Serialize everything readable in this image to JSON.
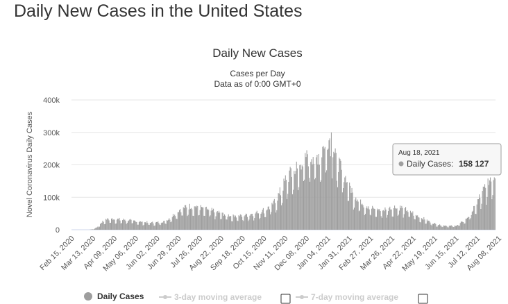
{
  "page": {
    "title": "Daily New Cases in the United States"
  },
  "chart_data": {
    "type": "bar",
    "title": "Daily New Cases",
    "subtitle_lines": [
      "Cases per Day",
      "Data as of 0:00 GMT+0"
    ],
    "xlabel": "",
    "ylabel": "Novel Coronavirus Daily Cases",
    "ylim": [
      0,
      400000
    ],
    "yticks": [
      0,
      100000,
      200000,
      300000,
      400000
    ],
    "ytick_labels": [
      "0",
      "100k",
      "200k",
      "300k",
      "400k"
    ],
    "grid": true,
    "x_start_date": "Feb 15, 2020",
    "x_end_date": "Aug 18, 2021",
    "xtick_labels": [
      "Feb 15, 2020",
      "Mar 13, 2020",
      "Apr 09, 2020",
      "May 06, 2020",
      "Jun 02, 2020",
      "Jun 29, 2020",
      "Jul 26, 2020",
      "Aug 22, 2020",
      "Sep 18, 2020",
      "Oct 15, 2020",
      "Nov 11, 2020",
      "Dec 08, 2020",
      "Jan 04, 2021",
      "Jan 31, 2021",
      "Feb 27, 2021",
      "Mar 26, 2021",
      "Apr 22, 2021",
      "May 19, 2021",
      "Jun 15, 2021",
      "Jul 12, 2021",
      "Aug 08, 2021"
    ],
    "series": [
      {
        "name": "Daily Cases",
        "color": "#9e9e9e",
        "approx_curve_days_since_start": [
          [
            0,
            0
          ],
          [
            22,
            0
          ],
          [
            28,
            2000
          ],
          [
            33,
            9000
          ],
          [
            38,
            22000
          ],
          [
            44,
            30000
          ],
          [
            52,
            31000
          ],
          [
            62,
            29000
          ],
          [
            75,
            27000
          ],
          [
            85,
            23000
          ],
          [
            95,
            21000
          ],
          [
            105,
            20000
          ],
          [
            115,
            23000
          ],
          [
            122,
            30000
          ],
          [
            130,
            45000
          ],
          [
            138,
            60000
          ],
          [
            146,
            66000
          ],
          [
            155,
            67000
          ],
          [
            165,
            62000
          ],
          [
            175,
            56000
          ],
          [
            185,
            50000
          ],
          [
            195,
            42000
          ],
          [
            205,
            40000
          ],
          [
            215,
            40000
          ],
          [
            225,
            44000
          ],
          [
            235,
            50000
          ],
          [
            245,
            57000
          ],
          [
            255,
            75000
          ],
          [
            263,
            105000
          ],
          [
            270,
            140000
          ],
          [
            277,
            165000
          ],
          [
            285,
            175000
          ],
          [
            293,
            200000
          ],
          [
            300,
            215000
          ],
          [
            307,
            205000
          ],
          [
            312,
            210000
          ],
          [
            318,
            235000
          ],
          [
            323,
            260000
          ],
          [
            328,
            250000
          ],
          [
            333,
            215000
          ],
          [
            340,
            175000
          ],
          [
            347,
            145000
          ],
          [
            354,
            110000
          ],
          [
            362,
            85000
          ],
          [
            370,
            72000
          ],
          [
            378,
            62000
          ],
          [
            386,
            58000
          ],
          [
            394,
            56000
          ],
          [
            402,
            62000
          ],
          [
            410,
            65000
          ],
          [
            418,
            62000
          ],
          [
            425,
            55000
          ],
          [
            432,
            46000
          ],
          [
            440,
            36000
          ],
          [
            448,
            28000
          ],
          [
            456,
            19000
          ],
          [
            464,
            14000
          ],
          [
            472,
            12000
          ],
          [
            480,
            11000
          ],
          [
            486,
            12000
          ],
          [
            492,
            20000
          ],
          [
            498,
            30000
          ],
          [
            504,
            45000
          ],
          [
            510,
            68000
          ],
          [
            516,
            95000
          ],
          [
            522,
            120000
          ],
          [
            527,
            138000
          ],
          [
            530,
            150000
          ],
          [
            535,
            158127
          ]
        ],
        "peaks": [
          {
            "date": "Jan 08, 2021",
            "value": 300000
          },
          {
            "date": "Aug 18, 2021",
            "value": 158127
          }
        ]
      }
    ],
    "tooltip": {
      "date": "Aug 18, 2021",
      "label": "Daily Cases:",
      "value": "158 127"
    },
    "legend": [
      {
        "label": "Daily Cases",
        "active": true,
        "checkbox": false
      },
      {
        "label": "3-day moving average",
        "active": false,
        "checkbox": true,
        "checked": false
      },
      {
        "label": "7-day moving average",
        "active": false,
        "checkbox": true,
        "checked": false
      }
    ],
    "colors": {
      "bar": "#9e9e9e",
      "grid": "#e6e6e6",
      "axis": "#ccd6eb",
      "inactive": "#cccccc"
    }
  }
}
